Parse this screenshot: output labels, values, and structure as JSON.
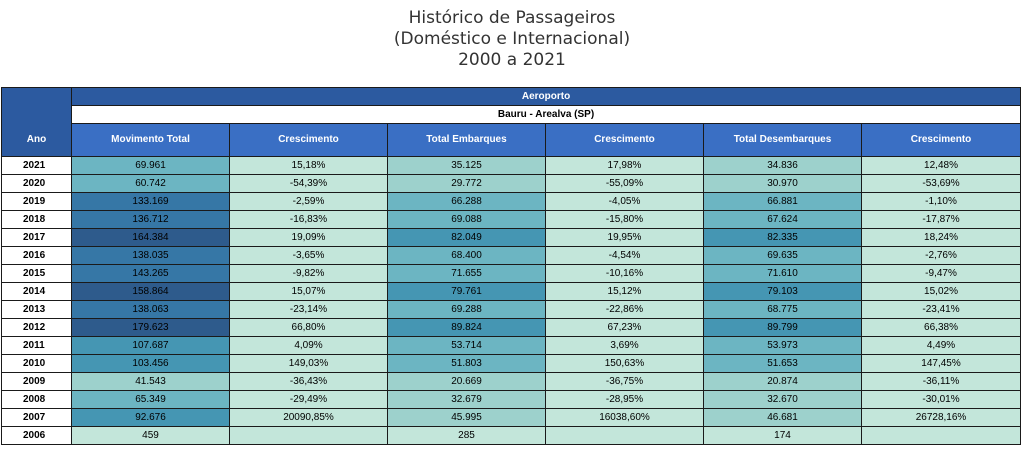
{
  "title": {
    "line1": "Histórico de Passageiros",
    "line2": "(Doméstico e Internacional)",
    "line3": "2000 a 2021"
  },
  "table": {
    "group_header": "Aeroporto",
    "airport": "Bauru - Arealva (SP)",
    "year_header": "Ano",
    "columns": [
      "Movimento Total",
      "Crescimento",
      "Total Embarques",
      "Crescimento",
      "Total Desembarques",
      "Crescimento"
    ],
    "colors": {
      "header_blue": "#2c5aa0",
      "darkest": "#2e5b8c",
      "dark": "#3677a6",
      "mid": "#4596b3",
      "light": "#6cb5c2",
      "lighter": "#9dd1cc",
      "lightest": "#c3e6da"
    },
    "rows": [
      {
        "year": "2021",
        "mov": "69.961",
        "c1": "15,18%",
        "emb": "35.125",
        "c2": "17,98%",
        "des": "34.836",
        "c3": "12,48%",
        "shade": [
          "light",
          "lightest",
          "lighter",
          "lightest",
          "lighter",
          "lightest"
        ]
      },
      {
        "year": "2020",
        "mov": "60.742",
        "c1": "-54,39%",
        "emb": "29.772",
        "c2": "-55,09%",
        "des": "30.970",
        "c3": "-53,69%",
        "shade": [
          "light",
          "lightest",
          "lighter",
          "lightest",
          "lighter",
          "lightest"
        ]
      },
      {
        "year": "2019",
        "mov": "133.169",
        "c1": "-2,59%",
        "emb": "66.288",
        "c2": "-4,05%",
        "des": "66.881",
        "c3": "-1,10%",
        "shade": [
          "dark",
          "lightest",
          "light",
          "lightest",
          "light",
          "lightest"
        ]
      },
      {
        "year": "2018",
        "mov": "136.712",
        "c1": "-16,83%",
        "emb": "69.088",
        "c2": "-15,80%",
        "des": "67.624",
        "c3": "-17,87%",
        "shade": [
          "dark",
          "lightest",
          "light",
          "lightest",
          "light",
          "lightest"
        ]
      },
      {
        "year": "2017",
        "mov": "164.384",
        "c1": "19,09%",
        "emb": "82.049",
        "c2": "19,95%",
        "des": "82.335",
        "c3": "18,24%",
        "shade": [
          "darkest",
          "lightest",
          "mid",
          "lightest",
          "mid",
          "lightest"
        ]
      },
      {
        "year": "2016",
        "mov": "138.035",
        "c1": "-3,65%",
        "emb": "68.400",
        "c2": "-4,54%",
        "des": "69.635",
        "c3": "-2,76%",
        "shade": [
          "dark",
          "lightest",
          "light",
          "lightest",
          "light",
          "lightest"
        ]
      },
      {
        "year": "2015",
        "mov": "143.265",
        "c1": "-9,82%",
        "emb": "71.655",
        "c2": "-10,16%",
        "des": "71.610",
        "c3": "-9,47%",
        "shade": [
          "dark",
          "lightest",
          "light",
          "lightest",
          "light",
          "lightest"
        ]
      },
      {
        "year": "2014",
        "mov": "158.864",
        "c1": "15,07%",
        "emb": "79.761",
        "c2": "15,12%",
        "des": "79.103",
        "c3": "15,02%",
        "shade": [
          "darkest",
          "lightest",
          "mid",
          "lightest",
          "mid",
          "lightest"
        ]
      },
      {
        "year": "2013",
        "mov": "138.063",
        "c1": "-23,14%",
        "emb": "69.288",
        "c2": "-22,86%",
        "des": "68.775",
        "c3": "-23,41%",
        "shade": [
          "dark",
          "lightest",
          "light",
          "lightest",
          "light",
          "lightest"
        ]
      },
      {
        "year": "2012",
        "mov": "179.623",
        "c1": "66,80%",
        "emb": "89.824",
        "c2": "67,23%",
        "des": "89.799",
        "c3": "66,38%",
        "shade": [
          "darkest",
          "lightest",
          "mid",
          "lightest",
          "mid",
          "lightest"
        ]
      },
      {
        "year": "2011",
        "mov": "107.687",
        "c1": "4,09%",
        "emb": "53.714",
        "c2": "3,69%",
        "des": "53.973",
        "c3": "4,49%",
        "shade": [
          "mid",
          "lightest",
          "light",
          "lightest",
          "light",
          "lightest"
        ]
      },
      {
        "year": "2010",
        "mov": "103.456",
        "c1": "149,03%",
        "emb": "51.803",
        "c2": "150,63%",
        "des": "51.653",
        "c3": "147,45%",
        "shade": [
          "mid",
          "lightest",
          "light",
          "lightest",
          "light",
          "lightest"
        ]
      },
      {
        "year": "2009",
        "mov": "41.543",
        "c1": "-36,43%",
        "emb": "20.669",
        "c2": "-36,75%",
        "des": "20.874",
        "c3": "-36,11%",
        "shade": [
          "lighter",
          "lightest",
          "lighter",
          "lightest",
          "lighter",
          "lightest"
        ]
      },
      {
        "year": "2008",
        "mov": "65.349",
        "c1": "-29,49%",
        "emb": "32.679",
        "c2": "-28,95%",
        "des": "32.670",
        "c3": "-30,01%",
        "shade": [
          "light",
          "lightest",
          "lighter",
          "lightest",
          "lighter",
          "lightest"
        ]
      },
      {
        "year": "2007",
        "mov": "92.676",
        "c1": "20090,85%",
        "emb": "45.995",
        "c2": "16038,60%",
        "des": "46.681",
        "c3": "26728,16%",
        "shade": [
          "mid",
          "lightest",
          "lighter",
          "lightest",
          "lighter",
          "lightest"
        ]
      },
      {
        "year": "2006",
        "mov": "459",
        "c1": "",
        "emb": "285",
        "c2": "",
        "des": "174",
        "c3": "",
        "shade": [
          "lightest",
          "lightest",
          "lightest",
          "lightest",
          "lightest",
          "lightest"
        ]
      }
    ]
  }
}
